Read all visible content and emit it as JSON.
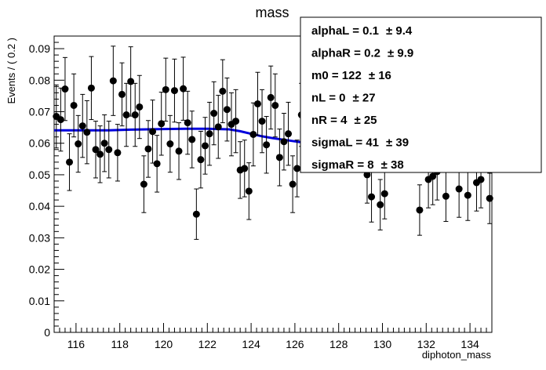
{
  "chart_data": {
    "type": "scatter",
    "title": "mass",
    "xlabel": "diphoton_mass",
    "ylabel": "Events / ( 0.2 )",
    "xlim": [
      115,
      135
    ],
    "ylim": [
      0,
      0.094
    ],
    "x_ticks": [
      "116",
      "118",
      "120",
      "122",
      "124",
      "126",
      "128",
      "130",
      "132",
      "134"
    ],
    "y_ticks": [
      "0",
      "0.01",
      "0.02",
      "0.03",
      "0.04",
      "0.05",
      "0.06",
      "0.07",
      "0.08",
      "0.09"
    ],
    "grid": false,
    "series": [
      {
        "kind": "points_with_errors",
        "color": "#000000",
        "points": [
          {
            "x": 115.1,
            "y": 0.0685,
            "err": 0.01
          },
          {
            "x": 115.3,
            "y": 0.0675,
            "err": 0.01
          },
          {
            "x": 115.5,
            "y": 0.0772,
            "err": 0.01
          },
          {
            "x": 115.7,
            "y": 0.054,
            "err": 0.009
          },
          {
            "x": 115.9,
            "y": 0.072,
            "err": 0.01
          },
          {
            "x": 116.1,
            "y": 0.0598,
            "err": 0.009
          },
          {
            "x": 116.3,
            "y": 0.0655,
            "err": 0.01
          },
          {
            "x": 116.5,
            "y": 0.0635,
            "err": 0.01
          },
          {
            "x": 116.7,
            "y": 0.0775,
            "err": 0.01
          },
          {
            "x": 116.9,
            "y": 0.058,
            "err": 0.009
          },
          {
            "x": 117.1,
            "y": 0.0565,
            "err": 0.009
          },
          {
            "x": 117.3,
            "y": 0.06,
            "err": 0.009
          },
          {
            "x": 117.5,
            "y": 0.058,
            "err": 0.009
          },
          {
            "x": 117.7,
            "y": 0.0798,
            "err": 0.011
          },
          {
            "x": 117.9,
            "y": 0.057,
            "err": 0.009
          },
          {
            "x": 118.1,
            "y": 0.0755,
            "err": 0.01
          },
          {
            "x": 118.3,
            "y": 0.069,
            "err": 0.01
          },
          {
            "x": 118.5,
            "y": 0.0796,
            "err": 0.011
          },
          {
            "x": 118.7,
            "y": 0.069,
            "err": 0.01
          },
          {
            "x": 118.9,
            "y": 0.0715,
            "err": 0.01
          },
          {
            "x": 119.1,
            "y": 0.047,
            "err": 0.009
          },
          {
            "x": 119.3,
            "y": 0.0582,
            "err": 0.009
          },
          {
            "x": 119.5,
            "y": 0.0637,
            "err": 0.01
          },
          {
            "x": 119.7,
            "y": 0.0535,
            "err": 0.009
          },
          {
            "x": 119.9,
            "y": 0.0662,
            "err": 0.01
          },
          {
            "x": 120.1,
            "y": 0.077,
            "err": 0.01
          },
          {
            "x": 120.3,
            "y": 0.0598,
            "err": 0.009
          },
          {
            "x": 120.5,
            "y": 0.0767,
            "err": 0.01
          },
          {
            "x": 120.7,
            "y": 0.0575,
            "err": 0.009
          },
          {
            "x": 120.9,
            "y": 0.0773,
            "err": 0.01
          },
          {
            "x": 121.1,
            "y": 0.0665,
            "err": 0.01
          },
          {
            "x": 121.3,
            "y": 0.0612,
            "err": 0.009
          },
          {
            "x": 121.5,
            "y": 0.0375,
            "err": 0.008
          },
          {
            "x": 121.7,
            "y": 0.0548,
            "err": 0.009
          },
          {
            "x": 121.9,
            "y": 0.0592,
            "err": 0.009
          },
          {
            "x": 122.1,
            "y": 0.063,
            "err": 0.01
          },
          {
            "x": 122.3,
            "y": 0.0695,
            "err": 0.01
          },
          {
            "x": 122.5,
            "y": 0.0652,
            "err": 0.01
          },
          {
            "x": 122.7,
            "y": 0.0765,
            "err": 0.01
          },
          {
            "x": 122.9,
            "y": 0.0707,
            "err": 0.01
          },
          {
            "x": 123.1,
            "y": 0.066,
            "err": 0.01
          },
          {
            "x": 123.3,
            "y": 0.067,
            "err": 0.01
          },
          {
            "x": 123.5,
            "y": 0.0515,
            "err": 0.009
          },
          {
            "x": 123.7,
            "y": 0.052,
            "err": 0.009
          },
          {
            "x": 123.9,
            "y": 0.0448,
            "err": 0.009
          },
          {
            "x": 124.1,
            "y": 0.0628,
            "err": 0.01
          },
          {
            "x": 124.3,
            "y": 0.0725,
            "err": 0.01
          },
          {
            "x": 124.5,
            "y": 0.067,
            "err": 0.01
          },
          {
            "x": 124.7,
            "y": 0.0595,
            "err": 0.009
          },
          {
            "x": 124.9,
            "y": 0.0745,
            "err": 0.01
          },
          {
            "x": 125.1,
            "y": 0.072,
            "err": 0.01
          },
          {
            "x": 125.3,
            "y": 0.0555,
            "err": 0.009
          },
          {
            "x": 125.5,
            "y": 0.0605,
            "err": 0.009
          },
          {
            "x": 125.7,
            "y": 0.063,
            "err": 0.01
          },
          {
            "x": 125.9,
            "y": 0.047,
            "err": 0.009
          },
          {
            "x": 126.1,
            "y": 0.052,
            "err": 0.009
          },
          {
            "x": 126.3,
            "y": 0.069,
            "err": 0.01
          },
          {
            "x": 129.3,
            "y": 0.05,
            "err": 0.009
          },
          {
            "x": 129.5,
            "y": 0.043,
            "err": 0.008
          },
          {
            "x": 129.9,
            "y": 0.0405,
            "err": 0.008
          },
          {
            "x": 130.1,
            "y": 0.044,
            "err": 0.008
          },
          {
            "x": 131.7,
            "y": 0.0388,
            "err": 0.008
          },
          {
            "x": 132.1,
            "y": 0.0485,
            "err": 0.009
          },
          {
            "x": 132.3,
            "y": 0.0495,
            "err": 0.009
          },
          {
            "x": 132.5,
            "y": 0.051,
            "err": 0.009
          },
          {
            "x": 132.9,
            "y": 0.0432,
            "err": 0.008
          },
          {
            "x": 133.5,
            "y": 0.0455,
            "err": 0.009
          },
          {
            "x": 133.9,
            "y": 0.0435,
            "err": 0.008
          },
          {
            "x": 134.3,
            "y": 0.0475,
            "err": 0.009
          },
          {
            "x": 134.5,
            "y": 0.0485,
            "err": 0.009
          },
          {
            "x": 134.9,
            "y": 0.0425,
            "err": 0.008
          }
        ]
      },
      {
        "kind": "line",
        "color": "#0000dd",
        "x": [
          115,
          117.5,
          118.5,
          120,
          121,
          122,
          123,
          123.5,
          124,
          124.5,
          125,
          125.5,
          126,
          126.5
        ],
        "y": [
          0.0641,
          0.0641,
          0.0643,
          0.0645,
          0.0646,
          0.0646,
          0.0644,
          0.0638,
          0.063,
          0.0622,
          0.0616,
          0.0611,
          0.0606,
          0.0601
        ]
      }
    ],
    "parameters_box": {
      "placement": "top-right",
      "rows": [
        {
          "label": "alphaL =  0.1",
          "error": "± 9.4"
        },
        {
          "label": "alphaR =  0.2",
          "error": "± 9.9"
        },
        {
          "label": "m0 =  122",
          "error": "± 16"
        },
        {
          "label": "nL =  0",
          "error": "± 27"
        },
        {
          "label": "nR =  4",
          "error": "± 25"
        },
        {
          "label": "sigmaL =  41",
          "error": "± 39"
        },
        {
          "label": "sigmaR =  8",
          "error": "± 38"
        }
      ]
    }
  }
}
